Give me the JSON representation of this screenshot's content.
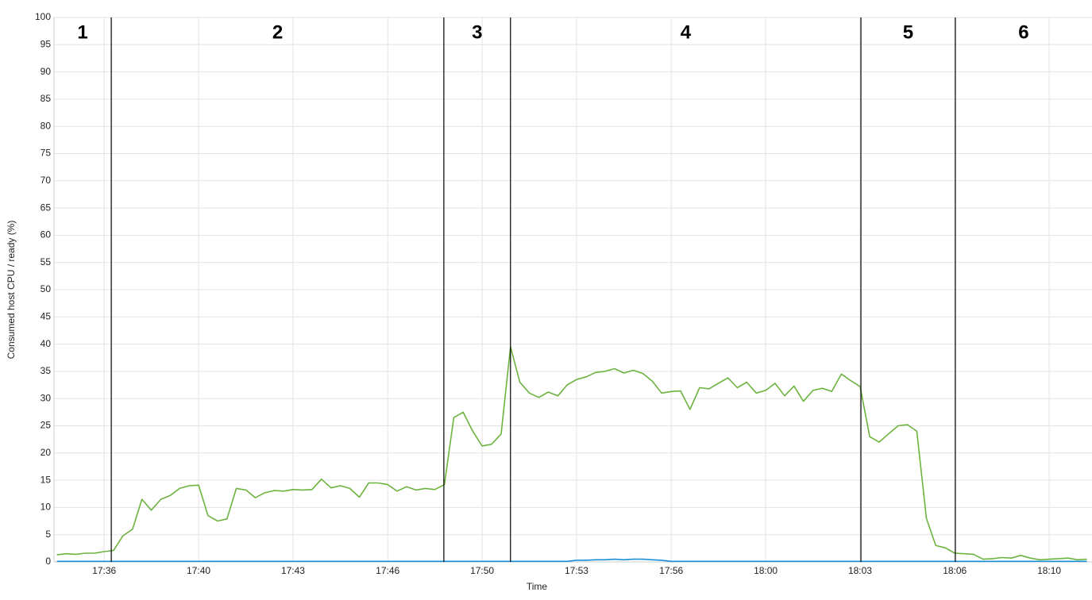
{
  "chart_data": {
    "type": "line",
    "xlabel": "Time",
    "ylabel": "Consumed host CPU / ready (%)",
    "x": [
      35,
      35.33,
      35.67,
      36,
      36.33,
      36.67,
      37,
      37.33,
      37.67,
      38,
      38.33,
      38.67,
      39,
      39.33,
      39.67,
      40,
      40.33,
      40.67,
      41,
      41.33,
      41.67,
      42,
      42.33,
      42.67,
      43,
      43.33,
      43.67,
      44,
      44.33,
      44.67,
      45,
      45.33,
      45.67,
      46,
      46.33,
      46.67,
      47,
      47.33,
      47.67,
      48,
      48.33,
      48.67,
      49,
      49.33,
      49.67,
      50,
      50.33,
      50.67,
      51,
      51.33,
      51.67,
      52,
      52.33,
      52.67,
      53,
      53.33,
      53.67,
      54,
      54.33,
      54.67,
      55,
      55.33,
      55.67,
      56,
      56.33,
      56.67,
      57,
      57.33,
      57.67,
      58,
      58.33,
      58.67,
      59,
      59.33,
      59.67,
      60,
      60.33,
      60.67,
      61,
      61.33,
      61.67,
      62,
      62.33,
      62.67,
      63,
      63.33,
      63.67,
      64,
      64.33,
      64.67,
      65,
      65.33,
      65.67,
      66,
      66.33,
      66.67,
      67,
      67.33,
      67.67,
      68,
      68.33,
      68.67,
      69,
      69.33,
      69.67,
      70,
      70.33,
      70.67,
      71,
      71.33
    ],
    "series": [
      {
        "name": "Consumed host CPU",
        "color": "#6db33f",
        "values": [
          1.3,
          1.5,
          1.4,
          1.6,
          1.6,
          1.9,
          2.1,
          4.8,
          6.0,
          11.5,
          9.5,
          11.5,
          12.2,
          13.5,
          14.0,
          14.1,
          8.5,
          7.5,
          7.9,
          13.5,
          13.2,
          11.8,
          12.7,
          13.1,
          13.0,
          13.3,
          13.2,
          13.3,
          15.2,
          13.6,
          14.0,
          13.5,
          11.9,
          14.5,
          14.5,
          14.2,
          13.0,
          13.8,
          13.2,
          13.5,
          13.3,
          14.2,
          26.5,
          27.5,
          24.0,
          21.3,
          21.6,
          23.5,
          39.5,
          33.0,
          31.0,
          30.2,
          31.2,
          30.5,
          32.5,
          33.5,
          34.0,
          34.8,
          35.0,
          35.5,
          34.7,
          35.2,
          34.6,
          33.2,
          31.0,
          31.3,
          31.4,
          28.0,
          32.0,
          31.8,
          32.8,
          33.8,
          32.0,
          33.0,
          31.0,
          31.5,
          32.8,
          30.5,
          32.3,
          29.5,
          31.5,
          31.9,
          31.3,
          34.5,
          33.3,
          32.2,
          23.0,
          22.0,
          23.5,
          25.0,
          25.2,
          24.0,
          8.0,
          3.0,
          2.6,
          1.6,
          1.5,
          1.4,
          0.5,
          0.6,
          0.8,
          0.7,
          1.2,
          0.7,
          0.4,
          0.5,
          0.6,
          0.7,
          0.4,
          0.5
        ]
      },
      {
        "name": "Ready",
        "color": "#1a8fd8",
        "values": [
          0.1,
          0.1,
          0.1,
          0.1,
          0.1,
          0.1,
          0.1,
          0.1,
          0.1,
          0.1,
          0.1,
          0.1,
          0.1,
          0.1,
          0.1,
          0.1,
          0.1,
          0.1,
          0.1,
          0.1,
          0.1,
          0.1,
          0.1,
          0.1,
          0.1,
          0.1,
          0.1,
          0.1,
          0.1,
          0.1,
          0.1,
          0.1,
          0.1,
          0.1,
          0.1,
          0.1,
          0.1,
          0.1,
          0.1,
          0.1,
          0.1,
          0.1,
          0.1,
          0.1,
          0.1,
          0.1,
          0.1,
          0.1,
          0.1,
          0.1,
          0.1,
          0.1,
          0.1,
          0.1,
          0.1,
          0.3,
          0.3,
          0.4,
          0.4,
          0.5,
          0.4,
          0.5,
          0.5,
          0.4,
          0.3,
          0.1,
          0.1,
          0.1,
          0.1,
          0.1,
          0.1,
          0.1,
          0.1,
          0.1,
          0.1,
          0.1,
          0.1,
          0.1,
          0.1,
          0.1,
          0.1,
          0.1,
          0.1,
          0.1,
          0.1,
          0.1,
          0.1,
          0.1,
          0.1,
          0.1,
          0.1,
          0.1,
          0.1,
          0.1,
          0.1,
          0.1,
          0.1,
          0.1,
          0.1,
          0.1,
          0.1,
          0.1,
          0.1,
          0.1,
          0.1,
          0.1,
          0.1,
          0.1,
          0.1,
          0.1
        ]
      }
    ],
    "xlim": [
      34.9,
      71.51
    ],
    "xticks": [
      {
        "value": 36.67,
        "label": "17:36"
      },
      {
        "value": 40,
        "label": "17:40"
      },
      {
        "value": 43.33,
        "label": "17:43"
      },
      {
        "value": 46.67,
        "label": "17:46"
      },
      {
        "value": 50,
        "label": "17:50"
      },
      {
        "value": 53.33,
        "label": "17:53"
      },
      {
        "value": 56.67,
        "label": "17:56"
      },
      {
        "value": 60,
        "label": "18:00"
      },
      {
        "value": 63.33,
        "label": "18:03"
      },
      {
        "value": 66.67,
        "label": "18:06"
      },
      {
        "value": 70,
        "label": "18:10"
      }
    ],
    "ylim": [
      0,
      100
    ],
    "yticks": [
      0,
      5,
      10,
      15,
      20,
      25,
      30,
      35,
      40,
      45,
      50,
      55,
      60,
      65,
      70,
      75,
      80,
      85,
      90,
      95,
      100
    ],
    "grid": true,
    "phase_boundaries": [
      36.92,
      48.65,
      51.0,
      63.36,
      66.69
    ],
    "phase_labels": [
      "1",
      "2",
      "3",
      "4",
      "5",
      "6"
    ]
  }
}
